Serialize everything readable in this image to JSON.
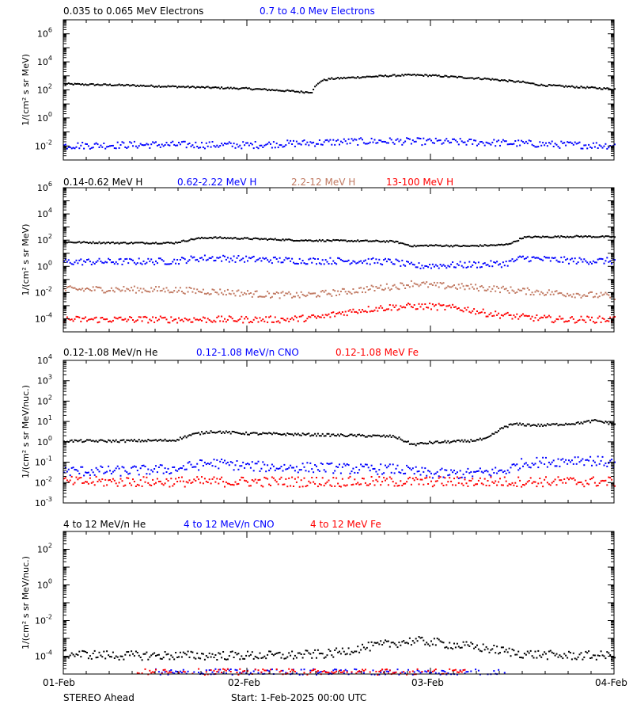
{
  "chart_data": [
    {
      "type": "scatter",
      "ylabel": "1/(cm² s sr MeV)",
      "ylog": true,
      "ylim_log10": [
        -3,
        7
      ],
      "yticks_exp": [
        "6",
        "4",
        "2",
        "0",
        "-2"
      ],
      "legend": [
        "0.035 to 0.065 MeV Electrons",
        "0.7 to 4.0 Mev Electrons"
      ],
      "series": [
        {
          "name": "0.035 to 0.065 MeV Electrons",
          "color": "#000000",
          "x": [
            0,
            0.1,
            0.3,
            0.5,
            0.7,
            1.0,
            1.2,
            1.3,
            1.35,
            1.36,
            1.4,
            1.45,
            1.6,
            1.8,
            1.9,
            2.0,
            2.1,
            2.3,
            2.5,
            2.6,
            2.8,
            3.0
          ],
          "y": [
            300,
            280,
            250,
            210,
            180,
            140,
            100,
            80,
            80,
            150,
            500,
            700,
            900,
            1200,
            1300,
            1200,
            1000,
            700,
            400,
            250,
            180,
            130
          ]
        },
        {
          "name": "0.7 to 4.0 Mev Electrons",
          "color": "#0000ff",
          "x": [
            0,
            0.5,
            1.0,
            1.3,
            1.5,
            1.7,
            1.9,
            2.1,
            2.3,
            2.5,
            2.7,
            3.0
          ],
          "y": [
            0.012,
            0.014,
            0.013,
            0.018,
            0.022,
            0.025,
            0.024,
            0.022,
            0.02,
            0.017,
            0.014,
            0.012
          ]
        }
      ]
    },
    {
      "type": "scatter",
      "ylabel": "1/(cm² s sr MeV)",
      "ylog": true,
      "ylim_log10": [
        -5,
        6
      ],
      "yticks_exp": [
        "6",
        "4",
        "2",
        "0",
        "-2",
        "-4"
      ],
      "legend": [
        "0.14-0.62 MeV H",
        "0.62-2.22 MeV H",
        "2.2-12 MeV H",
        "13-100 MeV H"
      ],
      "series": [
        {
          "name": "0.14-0.62 MeV H",
          "color": "#000000",
          "x": [
            0,
            0.3,
            0.6,
            0.72,
            0.8,
            1.0,
            1.3,
            1.6,
            1.8,
            1.9,
            2.0,
            2.2,
            2.4,
            2.45,
            2.5,
            2.55,
            2.6,
            2.8,
            3.0
          ],
          "y": [
            80,
            70,
            70,
            150,
            180,
            150,
            110,
            100,
            90,
            40,
            45,
            40,
            50,
            80,
            180,
            200,
            200,
            220,
            200
          ]
        },
        {
          "name": "0.62-2.22 MeV H",
          "color": "#0000ff",
          "x": [
            0,
            0.3,
            0.6,
            0.72,
            0.8,
            1.0,
            1.3,
            1.6,
            1.8,
            1.9,
            2.0,
            2.2,
            2.4,
            2.45,
            2.5,
            2.6,
            2.8,
            3.0
          ],
          "y": [
            2.5,
            2.6,
            2.8,
            4.5,
            5,
            4,
            3,
            3,
            2.5,
            1.2,
            1.3,
            1.5,
            1.8,
            3,
            5,
            4,
            3,
            3
          ]
        },
        {
          "name": "2.2-12 MeV H",
          "color": "#c07860",
          "x": [
            0,
            0.3,
            0.6,
            0.9,
            1.1,
            1.3,
            1.5,
            1.7,
            1.85,
            1.9,
            2.0,
            2.1,
            2.3,
            2.5,
            2.7,
            2.9,
            3.0
          ],
          "y": [
            0.02,
            0.02,
            0.018,
            0.012,
            0.008,
            0.007,
            0.012,
            0.025,
            0.04,
            0.06,
            0.04,
            0.035,
            0.025,
            0.015,
            0.01,
            0.007,
            0.006
          ]
        },
        {
          "name": "13-100 MeV H",
          "color": "#ff0000",
          "x": [
            0,
            0.3,
            0.6,
            0.9,
            1.2,
            1.4,
            1.5,
            1.6,
            1.7,
            1.8,
            1.9,
            2.0,
            2.1,
            2.2,
            2.3,
            2.5,
            2.7,
            3.0
          ],
          "y": [
            0.0001,
            0.0001,
            0.0001,
            0.0001,
            0.0001,
            0.00015,
            0.0003,
            0.0005,
            0.0007,
            0.0009,
            0.001,
            0.001,
            0.0008,
            0.0006,
            0.0003,
            0.00015,
            0.0001,
            0.0001
          ]
        }
      ]
    },
    {
      "type": "scatter",
      "ylabel": "1/(cm² s sr MeV/nuc.)",
      "ylog": true,
      "ylim_log10": [
        -3,
        4
      ],
      "yticks_exp": [
        "4",
        "3",
        "2",
        "1",
        "0",
        "-1",
        "-2",
        "-3"
      ],
      "legend": [
        "0.12-1.08 MeV/n He",
        "0.12-1.08 MeV/n CNO",
        "0.12-1.08 MeV Fe"
      ],
      "series": [
        {
          "name": "0.12-1.08 MeV/n He",
          "color": "#000000",
          "x": [
            0,
            0.3,
            0.6,
            0.7,
            0.8,
            1.0,
            1.3,
            1.6,
            1.8,
            1.9,
            2.0,
            2.2,
            2.3,
            2.4,
            2.45,
            2.6,
            2.8,
            2.9,
            3.0
          ],
          "y": [
            1.2,
            1.2,
            1.3,
            2.5,
            3.5,
            2.8,
            2.5,
            2.2,
            2.0,
            0.8,
            1.0,
            1.2,
            1.5,
            6,
            8,
            7,
            9,
            12,
            8
          ]
        },
        {
          "name": "0.12-1.08 MeV/n CNO",
          "color": "#0000ff",
          "x": [
            0,
            0.3,
            0.6,
            0.8,
            1.0,
            1.2,
            1.4,
            1.6,
            1.8,
            2.0,
            2.2,
            2.4,
            2.5,
            2.7,
            2.8,
            3.0
          ],
          "y": [
            0.04,
            0.04,
            0.05,
            0.1,
            0.07,
            0.06,
            0.06,
            0.05,
            0.05,
            0.03,
            0.03,
            0.04,
            0.1,
            0.12,
            0.15,
            0.1
          ]
        },
        {
          "name": "0.12-1.08 MeV Fe",
          "color": "#ff0000",
          "x": [
            0,
            0.5,
            1.0,
            1.5,
            2.0,
            2.5,
            3.0
          ],
          "y": [
            0.012,
            0.012,
            0.012,
            0.012,
            0.012,
            0.012,
            0.012
          ]
        }
      ]
    },
    {
      "type": "scatter",
      "ylabel": "1/(cm² s sr MeV/nuc.)",
      "ylog": true,
      "ylim_log10": [
        -5,
        3
      ],
      "yticks_exp": [
        "2",
        "0",
        "-2",
        "-4"
      ],
      "legend": [
        "4 to 12 MeV/n He",
        "4 to 12 MeV/n CNO",
        "4 to 12 MeV Fe"
      ],
      "series": [
        {
          "name": "4 to 12 MeV/n He",
          "color": "#000000",
          "x": [
            0,
            0.3,
            0.6,
            0.9,
            1.2,
            1.45,
            1.6,
            1.8,
            1.9,
            2.0,
            2.1,
            2.2,
            2.3,
            2.5,
            2.7,
            3.0
          ],
          "y": [
            0.00015,
            0.00012,
            0.00012,
            0.00012,
            0.00012,
            0.00015,
            0.0003,
            0.0006,
            0.0008,
            0.0007,
            0.0005,
            0.0004,
            0.0003,
            0.00015,
            0.00012,
            0.00012
          ]
        },
        {
          "name": "4 to 12 MeV/n CNO",
          "color": "#0000ff",
          "x": [
            0.5,
            1.2,
            1.9,
            2.4
          ],
          "y": [
            1.2e-05,
            1.2e-05,
            1.2e-05,
            1.2e-05
          ]
        },
        {
          "name": "4 to 12 MeV Fe",
          "color": "#ff0000",
          "x": [
            0.4,
            1.0,
            1.6,
            2.2
          ],
          "y": [
            1.2e-05,
            1.2e-05,
            1.2e-05,
            1.2e-05
          ]
        }
      ]
    }
  ],
  "xaxis": {
    "range_days": [
      0,
      3
    ],
    "ticks": [
      "01-Feb",
      "02-Feb",
      "03-Feb",
      "04-Feb"
    ]
  },
  "footer": {
    "spacecraft": "STEREO Ahead",
    "start": "Start:  1-Feb-2025 00:00 UTC"
  }
}
